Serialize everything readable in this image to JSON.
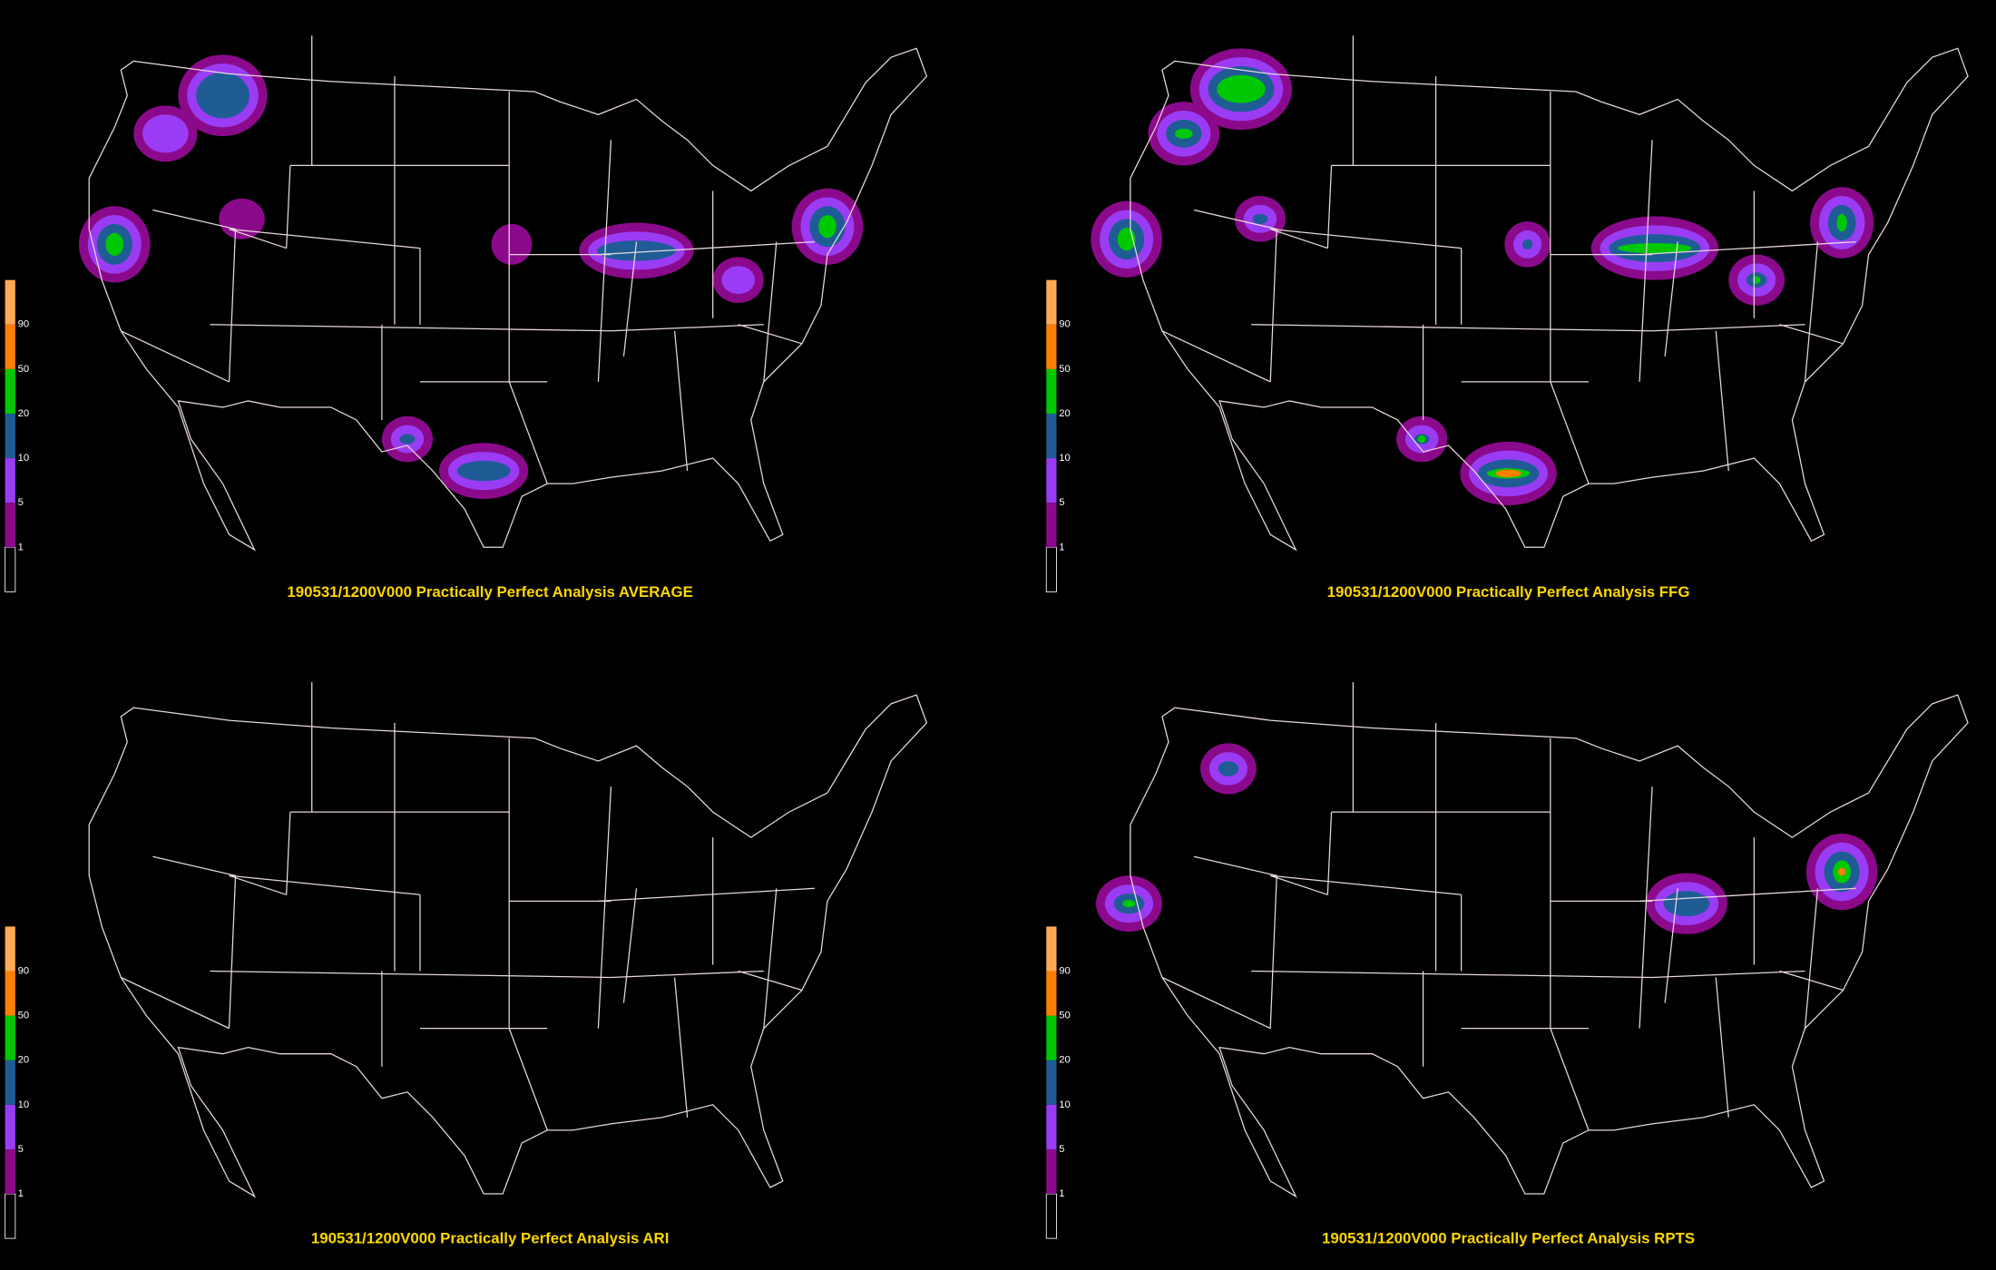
{
  "panels": [
    {
      "title": "190531/1200V000 Practically Perfect Analysis AVERAGE",
      "legend_labels": [
        1,
        5,
        10,
        20,
        50,
        90
      ]
    },
    {
      "title": "190531/1200V000 Practically Perfect Analysis FFG",
      "legend_labels": [
        1,
        5,
        10,
        20,
        50,
        90
      ]
    },
    {
      "title": "190531/1200V000 Practically Perfect Analysis ARI",
      "legend_labels": [
        1,
        5,
        10,
        20,
        50,
        90
      ]
    },
    {
      "title": "190531/1200V000 Practically Perfect Analysis RPTS",
      "legend_labels": [
        1,
        5,
        10,
        20,
        50,
        90
      ]
    }
  ],
  "legend_colors": [
    "#000000",
    "#8b0a8b",
    "#9b3cf5",
    "#1f5c96",
    "#00c800",
    "#ff7f00",
    "#ffaa55"
  ]
}
